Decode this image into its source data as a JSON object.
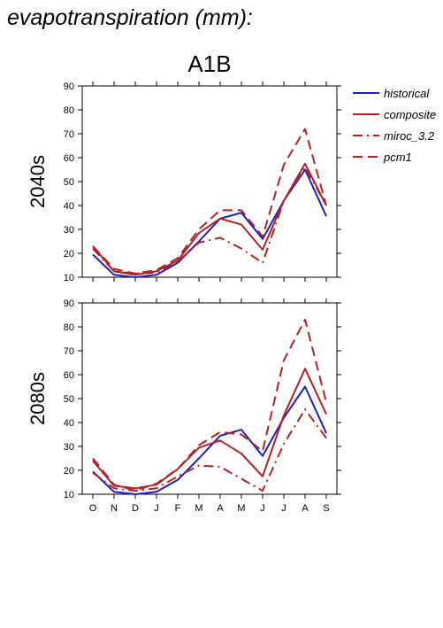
{
  "title": "evapotranspiration (mm):",
  "panel_title": "A1B",
  "legend": [
    {
      "name": "historical",
      "color": "#2020b8",
      "dash": "solid"
    },
    {
      "name": "composite",
      "color": "#b22222",
      "dash": "solid"
    },
    {
      "name": "miroc_3.2",
      "color": "#b22222",
      "dash": "dashdot"
    },
    {
      "name": "pcm1",
      "color": "#b22222",
      "dash": "dashed"
    }
  ],
  "chart_data": [
    {
      "type": "line",
      "row_label": "2040s",
      "categories": [
        "O",
        "N",
        "D",
        "J",
        "F",
        "M",
        "A",
        "M",
        "J",
        "J",
        "A",
        "S"
      ],
      "ylim": [
        10,
        90
      ],
      "yticks": [
        10,
        20,
        30,
        40,
        50,
        60,
        70,
        80,
        90
      ],
      "series": [
        {
          "name": "historical",
          "values": [
            19.5,
            11,
            10,
            11,
            16,
            25,
            34.5,
            37,
            26,
            42,
            55,
            35.5
          ]
        },
        {
          "name": "composite",
          "values": [
            23,
            12.5,
            11,
            12.5,
            17,
            28.5,
            34.5,
            32,
            21.5,
            42,
            57.5,
            40
          ]
        },
        {
          "name": "miroc_3.2",
          "values": [
            22,
            12.5,
            11.5,
            12,
            16.5,
            24.5,
            26.5,
            22,
            16,
            42,
            56,
            40
          ]
        },
        {
          "name": "pcm1",
          "values": [
            23,
            13.5,
            11.5,
            13,
            18,
            30,
            38,
            38,
            27,
            57,
            72,
            40
          ]
        }
      ]
    },
    {
      "type": "line",
      "row_label": "2080s",
      "categories": [
        "O",
        "N",
        "D",
        "J",
        "F",
        "M",
        "A",
        "M",
        "J",
        "J",
        "A",
        "S"
      ],
      "ylim": [
        10,
        90
      ],
      "yticks": [
        10,
        20,
        30,
        40,
        50,
        60,
        70,
        80,
        90
      ],
      "series": [
        {
          "name": "historical",
          "values": [
            19.5,
            11,
            10,
            11,
            16,
            25,
            34.5,
            37,
            26,
            42,
            55,
            35.5
          ]
        },
        {
          "name": "composite",
          "values": [
            24,
            13.5,
            12.5,
            14,
            20.5,
            29.5,
            32.5,
            27,
            17.5,
            43,
            62.5,
            43.5
          ]
        },
        {
          "name": "miroc_3.2",
          "values": [
            19,
            12.5,
            11.5,
            12.5,
            17.5,
            22,
            21.5,
            16.5,
            11.5,
            31,
            45.5,
            33.5
          ]
        },
        {
          "name": "pcm1",
          "values": [
            25,
            14,
            11.5,
            14.5,
            20.5,
            30.5,
            36,
            35,
            28,
            66,
            83,
            48.5
          ]
        }
      ]
    }
  ]
}
